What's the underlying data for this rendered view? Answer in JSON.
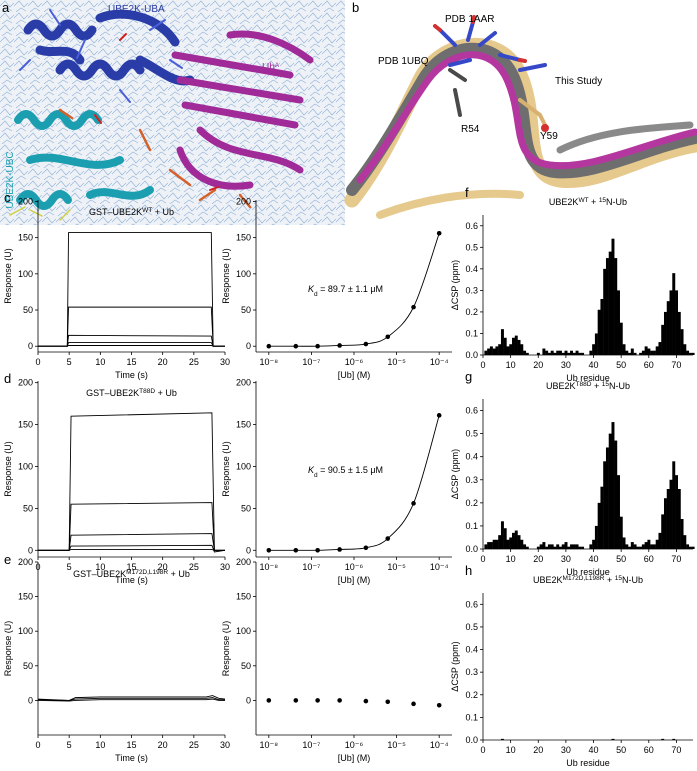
{
  "panel_a": {
    "letter": "a",
    "uba": "UBE2K-UBA",
    "ub": [
      {
        "text": "Ub"
      },
      {
        "text": "A",
        "sup": true
      }
    ],
    "ubc": "UBE2K-UBC"
  },
  "panel_b": {
    "letter": "b",
    "labels": [
      "PDB 1AAR",
      "PDB 1UBQ",
      "This Study",
      "R54",
      "Y59"
    ]
  },
  "chart_data": [
    {
      "type": "line",
      "letter": "c",
      "title": [
        {
          "text": "GST–UBE2K"
        },
        {
          "text": "WT",
          "sup": true
        },
        {
          "text": " + Ub"
        }
      ],
      "xlabel": "Time (s)",
      "ylabel": "Response (U)",
      "color": "#000000",
      "xlim": [
        0,
        30
      ],
      "xticks": [
        0,
        5,
        10,
        15,
        20,
        25,
        30
      ],
      "ylim": [
        -8,
        202
      ],
      "yticks": [
        0,
        50,
        100,
        150,
        200
      ],
      "x": [
        0,
        4.7,
        4.9,
        27.8,
        28.1,
        30
      ],
      "series": [
        {
          "values": [
            0,
            0,
            157,
            157,
            0,
            0
          ]
        },
        {
          "values": [
            0,
            0,
            54,
            54,
            0,
            0
          ]
        },
        {
          "values": [
            0,
            0,
            15,
            14,
            0,
            0
          ]
        },
        {
          "values": [
            0,
            0,
            5,
            5,
            0,
            0
          ]
        },
        {
          "values": [
            0,
            0,
            1,
            1,
            0,
            0
          ]
        }
      ]
    },
    {
      "type": "scatter",
      "xscale": "log",
      "fit": true,
      "annotation": [
        {
          "text": "K",
          "italic": true
        },
        {
          "text": "d",
          "sub": true
        },
        {
          "text": " = 89.7 ± 1.1 μM"
        }
      ],
      "xlabel": "[Ub] (M)",
      "ylabel": "Response (U)",
      "color": "#000000",
      "xlim": [
        5e-09,
        0.0002
      ],
      "xticks": [
        {
          "value": 1e-08,
          "label": "10⁻⁸"
        },
        {
          "value": 1e-07,
          "label": "10⁻⁷"
        },
        {
          "value": 1e-06,
          "label": "10⁻⁶"
        },
        {
          "value": 1e-05,
          "label": "10⁻⁵"
        },
        {
          "value": 0.0001,
          "label": "10⁻⁴"
        }
      ],
      "ylim": [
        -8,
        202
      ],
      "yticks": [
        0,
        50,
        100,
        150,
        200
      ],
      "x": [
        1e-08,
        4.3e-08,
        1.4e-07,
        4.6e-07,
        1.9e-06,
        6.2e-06,
        2.5e-05,
        0.0001
      ],
      "values": [
        0,
        0,
        0,
        1,
        3,
        13,
        54,
        156
      ]
    },
    {
      "type": "bar",
      "letter": "f",
      "title": [
        {
          "text": "UBE2K"
        },
        {
          "text": "WT",
          "sup": true
        },
        {
          "text": " + "
        },
        {
          "text": "15",
          "sup": true
        },
        {
          "text": "N-Ub"
        }
      ],
      "xlabel": "Ub residue",
      "ylabel": "ΔCSP (ppm)",
      "color": "#000000",
      "xlim": [
        0,
        76
      ],
      "xticks": [
        0,
        10,
        20,
        30,
        40,
        50,
        60,
        70
      ],
      "ylim": [
        0,
        0.65
      ],
      "yticks": [
        {
          "value": 0,
          "label": "0.0"
        },
        0.1,
        0.2,
        0.3,
        0.4,
        0.5,
        0.6
      ],
      "x": [
        1,
        2,
        3,
        4,
        5,
        6,
        7,
        8,
        9,
        10,
        11,
        12,
        13,
        14,
        15,
        16,
        17,
        18,
        19,
        20,
        21,
        22,
        23,
        24,
        25,
        26,
        27,
        28,
        29,
        30,
        31,
        32,
        33,
        34,
        35,
        36,
        37,
        38,
        39,
        40,
        41,
        42,
        43,
        44,
        45,
        46,
        47,
        48,
        49,
        50,
        51,
        52,
        53,
        54,
        55,
        56,
        57,
        58,
        59,
        60,
        61,
        62,
        63,
        64,
        65,
        66,
        67,
        68,
        69,
        70,
        71,
        72,
        73,
        74,
        75,
        76
      ],
      "values": [
        0.02,
        0.03,
        0.04,
        0.03,
        0.04,
        0.05,
        0.12,
        0.08,
        0.04,
        0.05,
        0.08,
        0.09,
        0.07,
        0.05,
        0.02,
        0.01,
        0,
        0,
        0,
        0.01,
        0,
        0.03,
        0.02,
        0.01,
        0.02,
        0.01,
        0.02,
        0.02,
        0.01,
        0.02,
        0.01,
        0.02,
        0.01,
        0.02,
        0.01,
        0.01,
        0,
        0,
        0.02,
        0.05,
        0.1,
        0.21,
        0.26,
        0.4,
        0.45,
        0.48,
        0.54,
        0.45,
        0.3,
        0.15,
        0.05,
        0.02,
        0.01,
        0.03,
        0.01,
        0,
        0.01,
        0.02,
        0.04,
        0.03,
        0.02,
        0.02,
        0.04,
        0.06,
        0.14,
        0.2,
        0.25,
        0.3,
        0.38,
        0.3,
        0.2,
        0.12,
        0.05,
        0.02,
        0.01,
        0.01
      ]
    },
    {
      "type": "line",
      "letter": "d",
      "title": [
        {
          "text": "GST–UBE2K"
        },
        {
          "text": "T88D",
          "sup": true
        },
        {
          "text": " + Ub"
        }
      ],
      "xlabel": "Time (s)",
      "ylabel": "Response (U)",
      "color": "#000000",
      "xlim": [
        0,
        30
      ],
      "xticks": [
        0,
        5,
        10,
        15,
        20,
        25,
        30
      ],
      "ylim": [
        -8,
        202
      ],
      "yticks": [
        0,
        50,
        100,
        150,
        200
      ],
      "x": [
        0,
        5.0,
        5.3,
        27.9,
        28.3,
        30
      ],
      "series": [
        {
          "values": [
            0,
            0,
            160,
            164,
            0,
            0
          ]
        },
        {
          "values": [
            0,
            0,
            55,
            57,
            0,
            0
          ]
        },
        {
          "values": [
            0,
            0,
            18,
            20,
            0,
            0
          ]
        },
        {
          "values": [
            0,
            0,
            5,
            6,
            -2,
            0
          ]
        },
        {
          "values": [
            0,
            0,
            1,
            1,
            0,
            0
          ]
        }
      ]
    },
    {
      "type": "scatter",
      "xscale": "log",
      "fit": true,
      "annotation": [
        {
          "text": "K",
          "italic": true
        },
        {
          "text": "d",
          "sub": true
        },
        {
          "text": " = 90.5 ± 1.5 μM"
        }
      ],
      "xlabel": "[Ub] (M)",
      "ylabel": "Response (U)",
      "color": "#000000",
      "xlim": [
        5e-09,
        0.0002
      ],
      "xticks": [
        {
          "value": 1e-08,
          "label": "10⁻⁸"
        },
        {
          "value": 1e-07,
          "label": "10⁻⁷"
        },
        {
          "value": 1e-06,
          "label": "10⁻⁶"
        },
        {
          "value": 1e-05,
          "label": "10⁻⁵"
        },
        {
          "value": 0.0001,
          "label": "10⁻⁴"
        }
      ],
      "ylim": [
        -8,
        202
      ],
      "yticks": [
        0,
        50,
        100,
        150,
        200
      ],
      "x": [
        1e-08,
        4.3e-08,
        1.4e-07,
        4.6e-07,
        1.9e-06,
        6.2e-06,
        2.5e-05,
        0.0001
      ],
      "values": [
        0,
        0,
        0,
        1,
        3,
        14,
        56,
        161
      ]
    },
    {
      "type": "bar",
      "letter": "g",
      "title": [
        {
          "text": "UBE2K"
        },
        {
          "text": "T88D",
          "sup": true
        },
        {
          "text": " + "
        },
        {
          "text": "15",
          "sup": true
        },
        {
          "text": "N-Ub"
        }
      ],
      "xlabel": "Ub residue",
      "ylabel": "ΔCSP (ppm)",
      "color": "#000000",
      "xlim": [
        0,
        76
      ],
      "xticks": [
        0,
        10,
        20,
        30,
        40,
        50,
        60,
        70
      ],
      "ylim": [
        0,
        0.65
      ],
      "yticks": [
        {
          "value": 0,
          "label": "0.0"
        },
        0.1,
        0.2,
        0.3,
        0.4,
        0.5,
        0.6
      ],
      "x": [
        1,
        2,
        3,
        4,
        5,
        6,
        7,
        8,
        9,
        10,
        11,
        12,
        13,
        14,
        15,
        16,
        17,
        18,
        19,
        20,
        21,
        22,
        23,
        24,
        25,
        26,
        27,
        28,
        29,
        30,
        31,
        32,
        33,
        34,
        35,
        36,
        37,
        38,
        39,
        40,
        41,
        42,
        43,
        44,
        45,
        46,
        47,
        48,
        49,
        50,
        51,
        52,
        53,
        54,
        55,
        56,
        57,
        58,
        59,
        60,
        61,
        62,
        63,
        64,
        65,
        66,
        67,
        68,
        69,
        70,
        71,
        72,
        73,
        74,
        75,
        76
      ],
      "values": [
        0.02,
        0.03,
        0.03,
        0.04,
        0.04,
        0.06,
        0.12,
        0.09,
        0.04,
        0.05,
        0.07,
        0.08,
        0.06,
        0.04,
        0.02,
        0.01,
        0,
        0,
        0,
        0.01,
        0.02,
        0.03,
        0.01,
        0.02,
        0.02,
        0.01,
        0.02,
        0.01,
        0.02,
        0.03,
        0.01,
        0.02,
        0.02,
        0.02,
        0.01,
        0.01,
        0,
        0,
        0.02,
        0.04,
        0.1,
        0.2,
        0.27,
        0.38,
        0.44,
        0.5,
        0.55,
        0.47,
        0.32,
        0.14,
        0.05,
        0.02,
        0.01,
        0.03,
        0.02,
        0.01,
        0.01,
        0.02,
        0.03,
        0.04,
        0.02,
        0.02,
        0.04,
        0.07,
        0.15,
        0.22,
        0.26,
        0.3,
        0.38,
        0.32,
        0.26,
        0.13,
        0.06,
        0.02,
        0.01,
        0.01
      ]
    },
    {
      "type": "line",
      "letter": "e",
      "title": [
        {
          "text": "GST–UBE2K"
        },
        {
          "text": "M172D,L198R",
          "sup": true
        },
        {
          "text": " + Ub"
        }
      ],
      "xlabel": "Time (s)",
      "ylabel": "Response (U)",
      "color": "#000000",
      "xlim": [
        0,
        30
      ],
      "xticks": [
        0,
        5,
        10,
        15,
        20,
        25,
        30
      ],
      "ylim": [
        -50,
        200
      ],
      "yticks": [
        0,
        50,
        100,
        150,
        200
      ],
      "x": [
        0,
        5,
        6,
        10,
        27,
        28,
        29,
        30
      ],
      "series": [
        {
          "values": [
            2,
            0,
            4,
            5,
            5,
            7,
            3,
            2
          ]
        },
        {
          "values": [
            1,
            0,
            2,
            3,
            3,
            4,
            1,
            1
          ]
        },
        {
          "values": [
            0,
            -1,
            0,
            1,
            1,
            2,
            0,
            0
          ]
        }
      ]
    },
    {
      "type": "scatter",
      "xscale": "log",
      "fit": false,
      "xlabel": "[Ub] (M)",
      "ylabel": "Response (U)",
      "color": "#000000",
      "xlim": [
        5e-09,
        0.0002
      ],
      "xticks": [
        {
          "value": 1e-08,
          "label": "10⁻⁸"
        },
        {
          "value": 1e-07,
          "label": "10⁻⁷"
        },
        {
          "value": 1e-06,
          "label": "10⁻⁶"
        },
        {
          "value": 1e-05,
          "label": "10⁻⁵"
        },
        {
          "value": 0.0001,
          "label": "10⁻⁴"
        }
      ],
      "ylim": [
        -50,
        200
      ],
      "yticks": [
        0,
        50,
        100,
        150,
        200
      ],
      "x": [
        1e-08,
        4.3e-08,
        1.4e-07,
        4.6e-07,
        1.9e-06,
        6.2e-06,
        2.5e-05,
        0.0001
      ],
      "values": [
        0,
        0,
        0,
        0,
        -1,
        -2,
        -5,
        -7
      ]
    },
    {
      "type": "bar",
      "letter": "h",
      "title": [
        {
          "text": "UBE2K"
        },
        {
          "text": "M172D,L198R",
          "sup": true
        },
        {
          "text": " + "
        },
        {
          "text": "15",
          "sup": true
        },
        {
          "text": "N-Ub"
        }
      ],
      "xlabel": "Ub residue",
      "ylabel": "ΔCSP (ppm)",
      "color": "#000000",
      "xlim": [
        0,
        76
      ],
      "xticks": [
        0,
        10,
        20,
        30,
        40,
        50,
        60,
        70
      ],
      "ylim": [
        0,
        0.65
      ],
      "yticks": [
        {
          "value": 0,
          "label": "0.0"
        },
        0.1,
        0.2,
        0.3,
        0.4,
        0.5,
        0.6
      ],
      "x": [
        1,
        2,
        3,
        4,
        5,
        6,
        7,
        8,
        9,
        10,
        11,
        12,
        13,
        14,
        15,
        16,
        17,
        18,
        19,
        20,
        21,
        22,
        23,
        24,
        25,
        26,
        27,
        28,
        29,
        30,
        31,
        32,
        33,
        34,
        35,
        36,
        37,
        38,
        39,
        40,
        41,
        42,
        43,
        44,
        45,
        46,
        47,
        48,
        49,
        50,
        51,
        52,
        53,
        54,
        55,
        56,
        57,
        58,
        59,
        60,
        61,
        62,
        63,
        64,
        65,
        66,
        67,
        68,
        69,
        70,
        71,
        72,
        73,
        74,
        75,
        76
      ],
      "values": [
        0,
        0,
        0,
        0,
        0,
        0,
        0.005,
        0,
        0,
        0,
        0,
        0,
        0,
        0,
        0,
        0,
        0,
        0,
        0,
        0,
        0,
        0,
        0,
        0,
        0,
        0,
        0,
        0,
        0,
        0,
        0,
        0,
        0,
        0,
        0,
        0,
        0,
        0,
        0,
        0,
        0,
        0,
        0,
        0,
        0,
        0,
        0.005,
        0,
        0,
        0,
        0,
        0,
        0,
        0,
        0,
        0,
        0,
        0,
        0,
        0,
        0,
        0,
        0,
        0,
        0.005,
        0,
        0,
        0,
        0.005,
        0,
        0,
        0,
        0,
        0,
        0,
        0
      ]
    }
  ]
}
